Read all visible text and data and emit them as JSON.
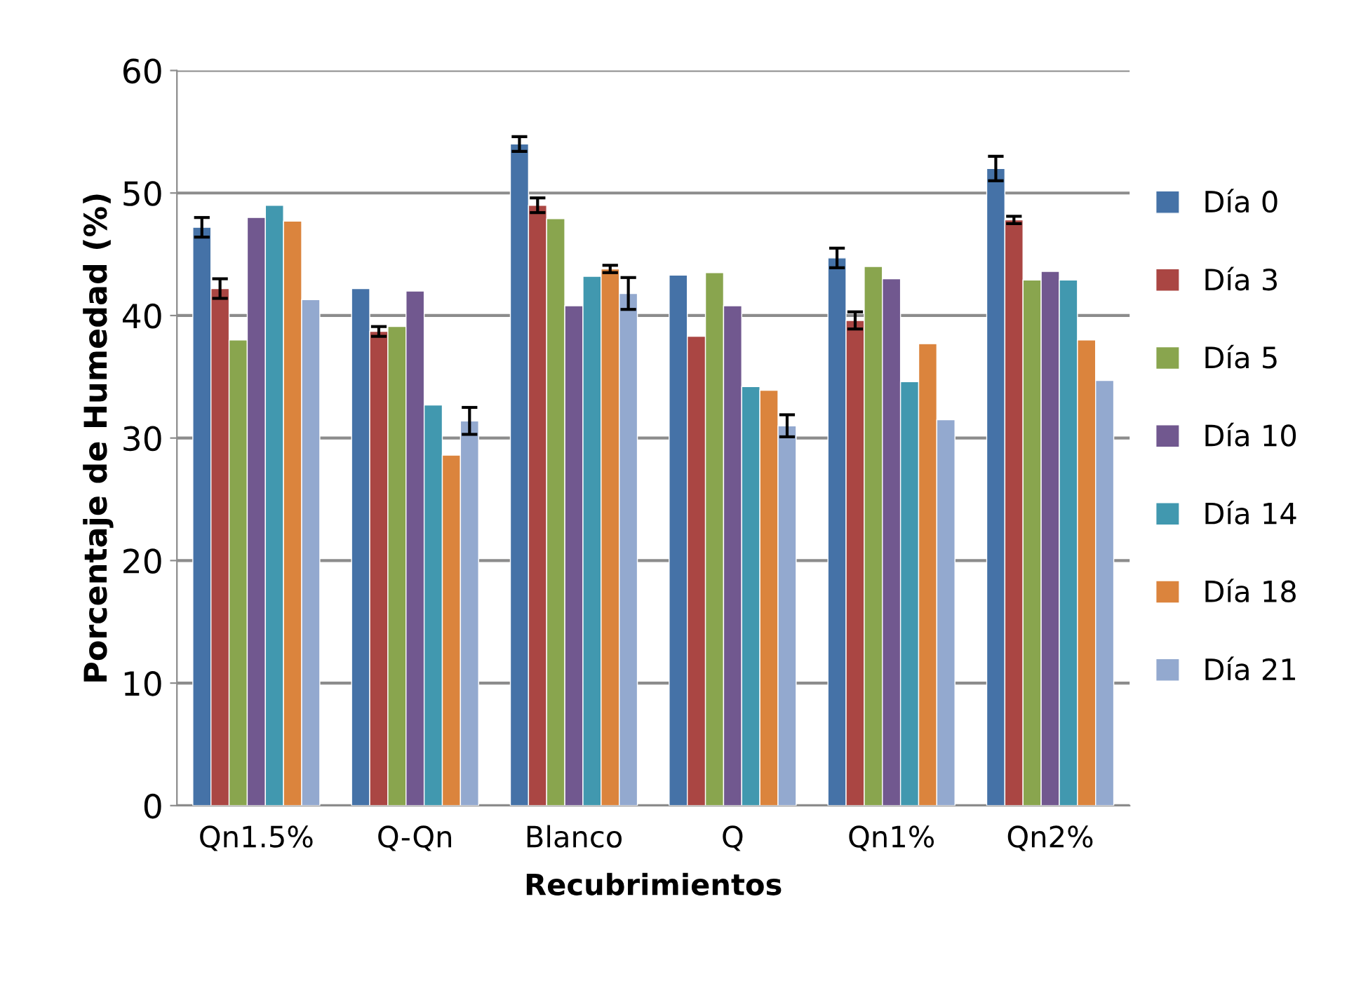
{
  "chart_data": {
    "type": "bar",
    "xlabel": "Recubrimientos",
    "ylabel": "Porcentaje de Humedad (%)",
    "categories": [
      "Qn1.5%",
      "Q-Qn",
      "Blanco",
      "Q",
      "Qn1%",
      "Qn2%"
    ],
    "series": [
      {
        "name": "Día 0",
        "color": "#4572a7",
        "values": [
          47.2,
          42.2,
          54.0,
          43.3,
          44.7,
          52.0
        ],
        "errors": [
          0.8,
          null,
          0.6,
          null,
          0.8,
          1.0
        ]
      },
      {
        "name": "Día 3",
        "color": "#aa4643",
        "values": [
          42.2,
          38.7,
          49.0,
          38.3,
          39.6,
          47.8
        ],
        "errors": [
          0.8,
          0.4,
          0.6,
          null,
          0.7,
          0.3
        ]
      },
      {
        "name": "Día 5",
        "color": "#89a54e",
        "values": [
          38.0,
          39.1,
          47.9,
          43.5,
          44.0,
          42.9
        ]
      },
      {
        "name": "Día 10",
        "color": "#71588f",
        "values": [
          48.0,
          42.0,
          40.8,
          40.8,
          43.0,
          43.6
        ]
      },
      {
        "name": "Día 14",
        "color": "#4198af",
        "values": [
          49.0,
          32.7,
          43.2,
          34.2,
          34.6,
          42.9
        ]
      },
      {
        "name": "Día 18",
        "color": "#db843d",
        "values": [
          47.7,
          28.6,
          43.8,
          33.9,
          37.7,
          38.0
        ],
        "errors": [
          null,
          null,
          0.3,
          null,
          null,
          null
        ]
      },
      {
        "name": "Día 21",
        "color": "#93a9cf",
        "values": [
          41.3,
          31.4,
          41.8,
          31.0,
          31.5,
          34.7
        ],
        "errors": [
          null,
          1.1,
          1.3,
          0.9,
          null,
          null
        ]
      }
    ],
    "ylim": [
      0,
      60
    ],
    "yticks": [
      0,
      10,
      20,
      30,
      40,
      50,
      60
    ],
    "grid": "y",
    "legend": "right"
  }
}
